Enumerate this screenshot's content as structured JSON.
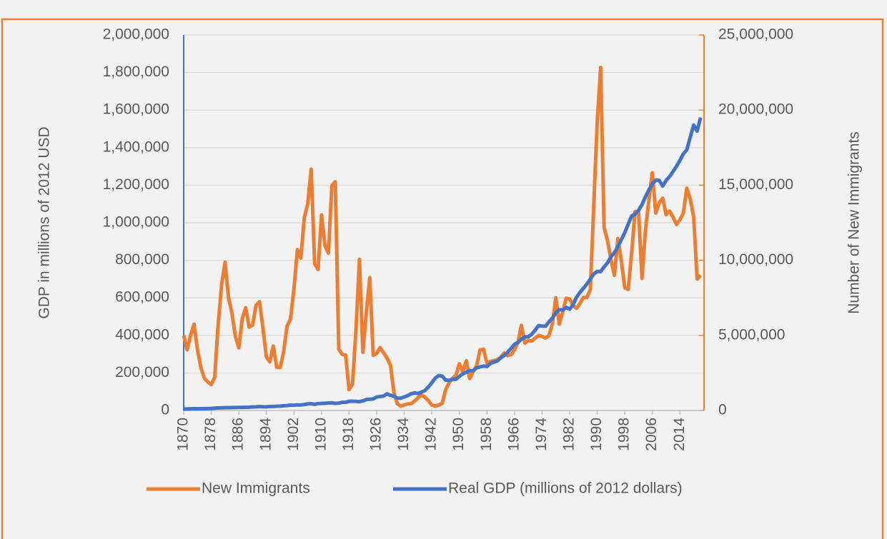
{
  "chart_data": {
    "type": "line",
    "y_label": "GDP in millions of 2012 USD",
    "y2_label": "Number of New Immigrants",
    "legend": "bottom",
    "grid": true,
    "xlim": [
      1870,
      2021
    ],
    "xticks": [
      1870,
      1878,
      1886,
      1894,
      1902,
      1910,
      1918,
      1926,
      1934,
      1942,
      1950,
      1958,
      1966,
      1974,
      1982,
      1990,
      1998,
      2006,
      2014
    ],
    "ylim": [
      0,
      2000000
    ],
    "yticks": [
      0,
      {
        "value": 200000,
        "label": "200,000"
      },
      {
        "value": 400000,
        "label": "400,000"
      },
      {
        "value": 600000,
        "label": "600,000"
      },
      {
        "value": 800000,
        "label": "800,000"
      },
      {
        "value": 1000000,
        "label": "1,000,000"
      },
      {
        "value": 1200000,
        "label": "1,200,000"
      },
      {
        "value": 1400000,
        "label": "1,400,000"
      },
      {
        "value": 1600000,
        "label": "1,600,000"
      },
      {
        "value": 1800000,
        "label": "1,800,000"
      },
      {
        "value": 2000000,
        "label": "2,000,000"
      }
    ],
    "y2lim": [
      0,
      25000000
    ],
    "y2ticks": [
      0,
      {
        "value": 5000000,
        "label": "5,000,000"
      },
      {
        "value": 10000000,
        "label": "10,000,000"
      },
      {
        "value": 15000000,
        "label": "15,000,000"
      },
      {
        "value": 20000000,
        "label": "20,000,000"
      },
      {
        "value": 25000000,
        "label": "25,000,000"
      }
    ],
    "x": [
      1870,
      1871,
      1872,
      1873,
      1874,
      1875,
      1876,
      1877,
      1878,
      1879,
      1880,
      1881,
      1882,
      1883,
      1884,
      1885,
      1886,
      1887,
      1888,
      1889,
      1890,
      1891,
      1892,
      1893,
      1894,
      1895,
      1896,
      1897,
      1898,
      1899,
      1900,
      1901,
      1902,
      1903,
      1904,
      1905,
      1906,
      1907,
      1908,
      1909,
      1910,
      1911,
      1912,
      1913,
      1914,
      1915,
      1916,
      1917,
      1918,
      1919,
      1920,
      1921,
      1922,
      1923,
      1924,
      1925,
      1926,
      1927,
      1928,
      1929,
      1930,
      1931,
      1932,
      1933,
      1934,
      1935,
      1936,
      1937,
      1938,
      1939,
      1940,
      1941,
      1942,
      1943,
      1944,
      1945,
      1946,
      1947,
      1948,
      1949,
      1950,
      1951,
      1952,
      1953,
      1954,
      1955,
      1956,
      1957,
      1958,
      1959,
      1960,
      1961,
      1962,
      1963,
      1964,
      1965,
      1966,
      1967,
      1968,
      1969,
      1970,
      1971,
      1972,
      1973,
      1974,
      1975,
      1976,
      1977,
      1978,
      1979,
      1980,
      1981,
      1982,
      1983,
      1984,
      1985,
      1986,
      1987,
      1988,
      1989,
      1990,
      1991,
      1992,
      1993,
      1994,
      1995,
      1996,
      1997,
      1998,
      1999,
      2000,
      2001,
      2002,
      2003,
      2004,
      2005,
      2006,
      2007,
      2008,
      2009,
      2010,
      2011,
      2012,
      2013,
      2014,
      2015,
      2016,
      2017,
      2018,
      2019,
      2020
    ],
    "series": [
      {
        "name": "New Immigrants",
        "color": "#ed7d31",
        "axis": "y",
        "values": [
          400000,
          323000,
          400000,
          460000,
          323000,
          228000,
          171000,
          152000,
          138000,
          177000,
          457000,
          669000,
          789000,
          603000,
          518000,
          395000,
          334000,
          490000,
          547000,
          444000,
          455000,
          560000,
          580000,
          440000,
          285000,
          259000,
          343000,
          230000,
          229000,
          312000,
          449000,
          488000,
          648000,
          857000,
          812000,
          1026000,
          1100000,
          1285000,
          782000,
          751000,
          1042000,
          878000,
          838000,
          1197000,
          1218000,
          327000,
          299000,
          295000,
          111000,
          141000,
          430000,
          805000,
          310000,
          523000,
          707000,
          294000,
          304000,
          335000,
          307000,
          280000,
          242000,
          97000,
          36000,
          23000,
          30000,
          35000,
          36000,
          50000,
          68000,
          82000,
          71000,
          52000,
          29000,
          24000,
          29000,
          38000,
          109000,
          147000,
          171000,
          188000,
          249000,
          206000,
          265000,
          170000,
          208000,
          238000,
          322000,
          327000,
          253000,
          261000,
          265000,
          271000,
          284000,
          306000,
          292000,
          297000,
          323000,
          362000,
          454000,
          359000,
          373000,
          370000,
          385000,
          400000,
          395000,
          386000,
          399000,
          462000,
          601000,
          460000,
          525000,
          597000,
          594000,
          560000,
          544000,
          570000,
          602000,
          601000,
          643000,
          1090000,
          1536000,
          1827000,
          974000,
          904000,
          804000,
          720000,
          916000,
          798000,
          654000,
          645000,
          841000,
          1059000,
          1059000,
          704000,
          958000,
          1122000,
          1266000,
          1052000,
          1107000,
          1131000,
          1043000,
          1062000,
          1031000,
          991000,
          1016000,
          1051000,
          1184000,
          1127000,
          1031000,
          700000,
          720000
        ]
      },
      {
        "name": "Real GDP (millions of 2012 dollars)",
        "color": "#4472c4",
        "axis": "y2",
        "values": [
          100000,
          102000,
          110000,
          116000,
          115000,
          118000,
          125000,
          131000,
          138000,
          152000,
          170000,
          180000,
          188000,
          192000,
          195000,
          198000,
          205000,
          210000,
          212000,
          220000,
          235000,
          245000,
          262000,
          250000,
          245000,
          268000,
          265000,
          285000,
          290000,
          315000,
          325000,
          355000,
          358000,
          375000,
          370000,
          395000,
          440000,
          450000,
          410000,
          460000,
          470000,
          480000,
          505000,
          510000,
          475000,
          490000,
          550000,
          545000,
          610000,
          615000,
          605000,
          590000,
          640000,
          730000,
          750000,
          770000,
          900000,
          930000,
          960000,
          1109000,
          1015000,
          950000,
          828000,
          817000,
          906000,
          986000,
          1114000,
          1171000,
          1132000,
          1223000,
          1330000,
          1566000,
          1843000,
          2148000,
          2321000,
          2294000,
          2025000,
          2005000,
          2085000,
          2076000,
          2267000,
          2441000,
          2542000,
          2660000,
          2644000,
          2835000,
          2898000,
          2957000,
          2925000,
          3136000,
          3217000,
          3300000,
          3503000,
          3663000,
          3877000,
          4132000,
          4408000,
          4527000,
          4749000,
          4896000,
          4911000,
          5079000,
          5349000,
          5653000,
          5622000,
          5611000,
          5900000,
          6159000,
          6508000,
          6713000,
          6695000,
          6867000,
          6741000,
          7044000,
          7543000,
          7861000,
          8139000,
          8420000,
          8758000,
          9080000,
          9261000,
          9245000,
          9559000,
          9830000,
          10233000,
          10509000,
          10904000,
          11374000,
          11845000,
          12410000,
          12947000,
          13079000,
          13326000,
          13709000,
          14226000,
          14689000,
          15080000,
          15333000,
          15323000,
          14945000,
          15317000,
          15568000,
          15911000,
          16257000,
          16650000,
          17088000,
          17359000,
          18200000,
          19000000,
          18600000,
          19500000
        ]
      }
    ]
  }
}
